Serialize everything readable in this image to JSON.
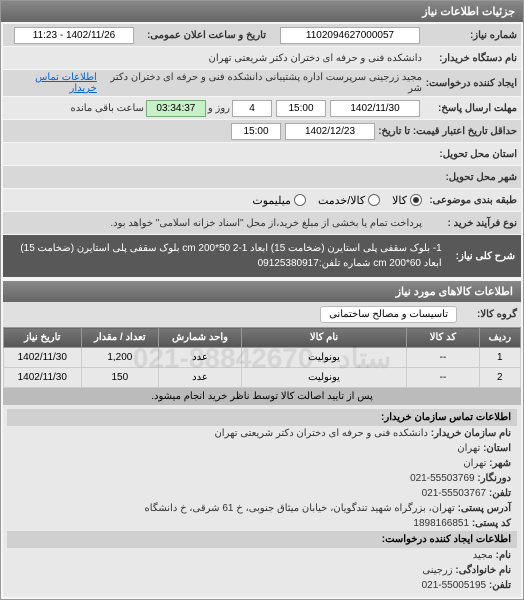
{
  "panel_title": "جزئیات اطلاعات نیاز",
  "fields": {
    "need_number_label": "شماره نیاز:",
    "need_number": "1102094627000057",
    "announce_label": "تاریخ و ساعت اعلان عمومی:",
    "announce_value": "1402/11/26 - 11:23",
    "manager_label": "نام دستگاه خریدار:",
    "manager_value": "دانشکده فنی و حرفه ای دختران دکتر شریعتی تهران",
    "creator_label": "ایجاد کننده درخواست:",
    "creator_value": "مجید زرجینی سرپرست اداره پشتیبانی دانشکده فنی و حرفه ای دختران دکتر شر",
    "contact_link": "اطلاعات تماس خریدار",
    "deadline_label": "مهلت ارسال پاسخ:",
    "deadline_date": "1402/11/30",
    "deadline_time": "15:00",
    "days_label": "روز و",
    "days_value": "4",
    "remaining_time": "03:34:37",
    "remaining_label": "ساعت باقی مانده",
    "min_date_label": "حداقل تاریخ اعتبار قیمت: تا تاریخ:",
    "min_date": "1402/12/23",
    "min_time": "15:00",
    "province_label": "استان محل تحویل:",
    "city_label": "شهر محل تحویل:",
    "need_type_label": "طبقه بندی موضوعی:",
    "need_type_goods": "کالا",
    "need_type_service": "کالا/خدمت",
    "need_type_mixed": "میلیموت",
    "process_label": "نوع فرآیند خرید :",
    "process_note": "پرداخت تمام یا بخشی از مبلغ خرید،از محل \"اسناد خزانه اسلامی\" خواهد بود.",
    "desc_label": "شرح کلی نیاز:",
    "desc_text": "1- بلوک سقفی پلی استایرن (ضخامت 15) ابعاد 1-2 cm 200*50 بلوک سقفی پلی استایرن (ضخامت 15) ابعاد cm 200*60 شماره تلفن:09125380917",
    "group_label": "گروه کالا:",
    "group_tag": "تاسیسات و مصالح ساختمانی"
  },
  "table": {
    "headers": [
      "ردیف",
      "کد کالا",
      "نام کالا",
      "واحد شمارش",
      "تعداد / مقدار",
      "تاریخ نیاز"
    ],
    "rows": [
      [
        "1",
        "--",
        "یونولیت",
        "عدد",
        "1,200",
        "1402/11/30"
      ],
      [
        "2",
        "--",
        "یونولیت",
        "عدد",
        "150",
        "1402/11/30"
      ]
    ],
    "col_widths": [
      "8%",
      "14%",
      "32%",
      "16%",
      "15%",
      "15%"
    ]
  },
  "note": "پس از تایید اصالت کالا توسط ناظر خرید انجام میشود.",
  "watermark": "ستاد - 88842670-021",
  "contact": {
    "header": "اطلاعات تماس سازمان خریدار:",
    "org_label": "نام سازمان خریدار:",
    "org": "دانشکده فنی و حرفه ای دختران دکتر شریعتی تهران",
    "prov_label": "استان:",
    "prov": "تهران",
    "city_label": "شهر:",
    "city": "تهران",
    "fax_label": "دورنگار:",
    "fax": "55503769-021",
    "tel_label": "تلفن:",
    "tel": "55503767-021",
    "addr_label": "آدرس پستی:",
    "addr": "تهران، بزرگراه شهید تندگویان، خیابان میثاق جنوبی، خ 61 شرقی، خ دانشگاه",
    "post_label": "کد پستی:",
    "post": "1898166851",
    "req_header": "اطلاعات ایجاد کننده درخواست:",
    "name_label": "نام:",
    "name": "مجید",
    "family_label": "نام خانوادگی:",
    "family": "زرجینی",
    "req_tel_label": "تلفن:",
    "req_tel": "55005195-021"
  }
}
